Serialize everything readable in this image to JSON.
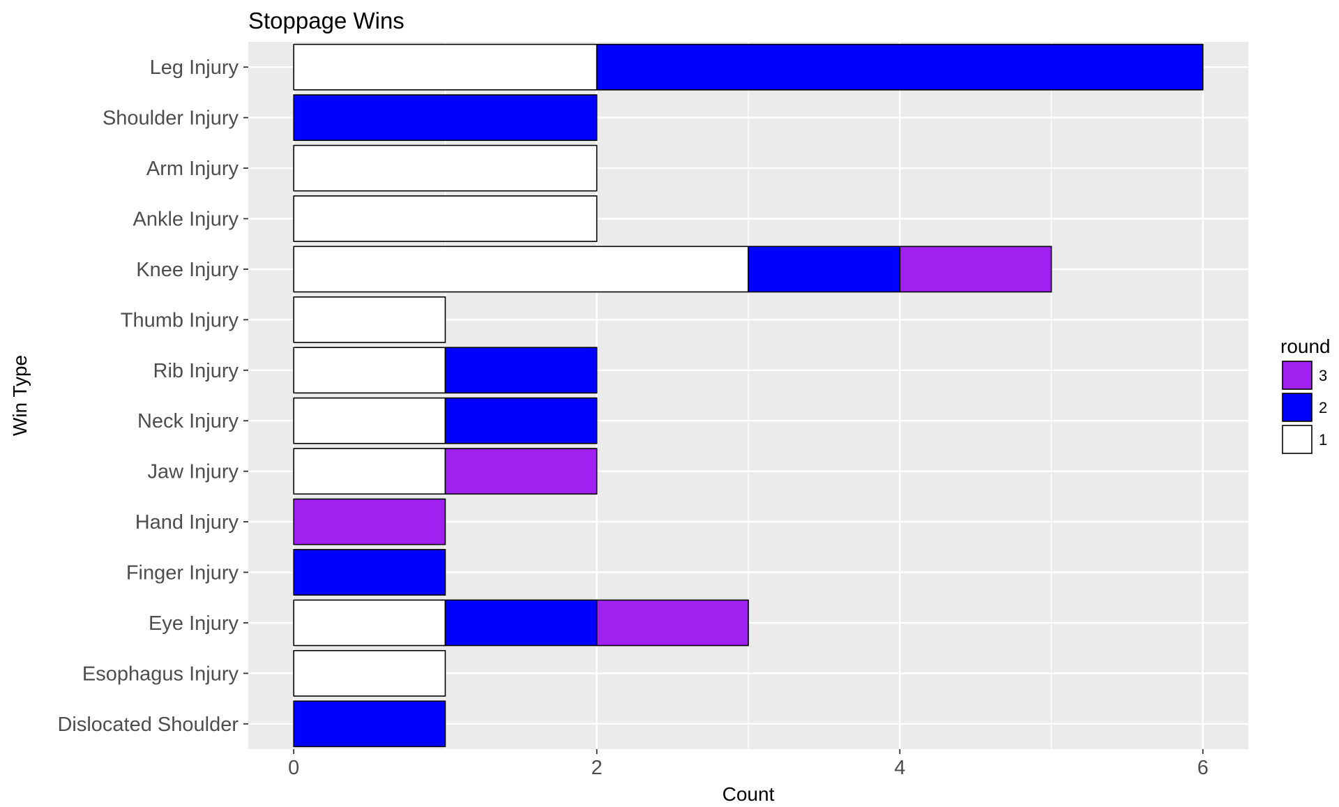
{
  "chart_data": {
    "type": "bar",
    "orientation": "horizontal",
    "stacked": true,
    "title": "Stoppage Wins",
    "xlabel": "Count",
    "ylabel": "Win Type",
    "xlim": [
      -0.3,
      6.3
    ],
    "xticks": [
      0,
      2,
      4,
      6
    ],
    "grid": true,
    "categories": [
      "Leg Injury",
      "Shoulder Injury",
      "Arm Injury",
      "Ankle Injury",
      "Knee Injury",
      "Thumb Injury",
      "Rib Injury",
      "Neck Injury",
      "Jaw Injury",
      "Hand Injury",
      "Finger Injury",
      "Eye Injury",
      "Esophagus Injury",
      "Dislocated Shoulder"
    ],
    "series": [
      {
        "name": "1",
        "color": "#ffffff",
        "values": [
          2,
          0,
          2,
          2,
          3,
          1,
          1,
          1,
          1,
          0,
          0,
          1,
          1,
          0
        ]
      },
      {
        "name": "2",
        "color": "#0000ff",
        "values": [
          4,
          2,
          0,
          0,
          1,
          0,
          1,
          1,
          0,
          0,
          1,
          1,
          0,
          1
        ]
      },
      {
        "name": "3",
        "color": "#a020f0",
        "values": [
          0,
          0,
          0,
          0,
          1,
          0,
          0,
          0,
          1,
          1,
          0,
          1,
          0,
          0
        ]
      }
    ],
    "legend": {
      "title": "round",
      "position": "right",
      "order": [
        "3",
        "2",
        "1"
      ]
    }
  }
}
